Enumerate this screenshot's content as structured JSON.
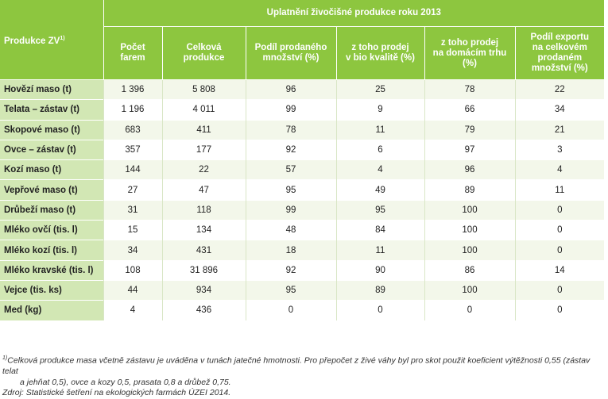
{
  "table": {
    "row_header": "Produkce ZV",
    "row_header_sup": "1)",
    "group_header": "Uplatnění živočišné produkce roku 2013",
    "columns": [
      "Počet\nfarem",
      "Celková\nprodukce",
      "Podíl prodaného\nmnožství (%)",
      "z toho prodej\nv bio kvalitě (%)",
      "z toho prodej\nna domácím trhu\n(%)",
      "Podíl exportu\nna celkovém\nprodaném\nmnožství (%)"
    ],
    "rows": [
      {
        "label": "Hovězí maso (t)",
        "values": [
          "1 396",
          "5 808",
          "96",
          "25",
          "78",
          "22"
        ]
      },
      {
        "label": "Telata – zástav (t)",
        "values": [
          "1 196",
          "4 011",
          "99",
          "9",
          "66",
          "34"
        ]
      },
      {
        "label": "Skopové maso (t)",
        "values": [
          "683",
          "411",
          "78",
          "11",
          "79",
          "21"
        ]
      },
      {
        "label": "Ovce – zástav (t)",
        "values": [
          "357",
          "177",
          "92",
          "6",
          "97",
          "3"
        ]
      },
      {
        "label": "Kozí maso (t)",
        "values": [
          "144",
          "22",
          "57",
          "4",
          "96",
          "4"
        ]
      },
      {
        "label": "Vepřové maso (t)",
        "values": [
          "27",
          "47",
          "95",
          "49",
          "89",
          "11"
        ]
      },
      {
        "label": "Drůbeží maso (t)",
        "values": [
          "31",
          "118",
          "99",
          "95",
          "100",
          "0"
        ]
      },
      {
        "label": "Mléko ovčí (tis. l)",
        "values": [
          "15",
          "134",
          "48",
          "84",
          "100",
          "0"
        ]
      },
      {
        "label": "Mléko kozí (tis. l)",
        "values": [
          "34",
          "431",
          "18",
          "11",
          "100",
          "0"
        ]
      },
      {
        "label": "Mléko kravské (tis. l)",
        "values": [
          "108",
          "31 896",
          "92",
          "90",
          "86",
          "14"
        ]
      },
      {
        "label": "Vejce (tis. ks)",
        "values": [
          "44",
          "934",
          "95",
          "89",
          "100",
          "0"
        ]
      },
      {
        "label": "Med (kg)",
        "values": [
          "4",
          "436",
          "0",
          "0",
          "0",
          "0"
        ]
      }
    ]
  },
  "footnote": {
    "marker": "1)",
    "line1": "Celková produkce masa včetně zástavu je uváděna v tunách jatečné hmotnosti. Pro přepočet z živé váhy byl pro skot použit koeficient výtěžnosti 0,55 (zástav telat",
    "line2": "a jehňat 0,5), ovce a kozy 0,5, prasata 0,8 a drůbež 0,75."
  },
  "source": "Zdroj: Statistické šetření na ekologických farmách ÚZEI 2014."
}
